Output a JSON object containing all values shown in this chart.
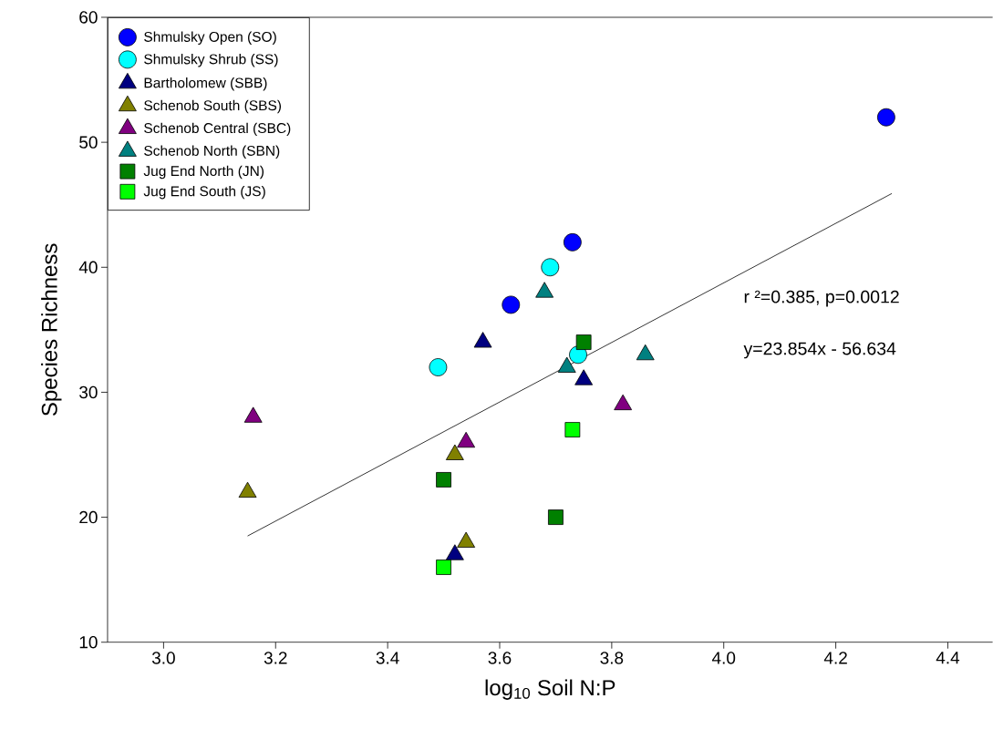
{
  "chart_data": {
    "type": "scatter",
    "xlabel": "log$_{10}$ Soil N:P",
    "ylabel": "Species Richness",
    "xlim": [
      2.9,
      4.48
    ],
    "xticks": [
      {
        "value": 3.0,
        "label": "3.0"
      },
      {
        "value": 3.2,
        "label": "3.2"
      },
      {
        "value": 3.4,
        "label": "3.4"
      },
      {
        "value": 3.6,
        "label": "3.6"
      },
      {
        "value": 3.8,
        "label": "3.8"
      },
      {
        "value": 4.0,
        "label": "4.0"
      },
      {
        "value": 4.2,
        "label": "4.2"
      },
      {
        "value": 4.4,
        "label": "4.4"
      }
    ],
    "ylim": [
      10,
      60
    ],
    "yticks": [
      10,
      20,
      30,
      40,
      50,
      60
    ],
    "legend": "top left",
    "grid": false,
    "annotations": [
      "r ²=0.385, p=0.0012",
      "y=23.854x - 56.634"
    ],
    "series": [
      {
        "name": "Shmulsky Open (SO)",
        "color": "#0000ff",
        "marker": "circle",
        "x": [
          3.62,
          3.73,
          4.29
        ],
        "values": [
          37,
          42,
          52
        ]
      },
      {
        "name": "Shmulsky Shrub (SS)",
        "color": "#00ffff",
        "marker": "circle",
        "x": [
          3.49,
          3.69,
          3.74
        ],
        "values": [
          32,
          40,
          33
        ]
      },
      {
        "name": "Bartholomew (SBB)",
        "color": "#000080",
        "marker": "triangle",
        "x": [
          3.57,
          3.75,
          3.52
        ],
        "values": [
          34,
          31,
          17
        ]
      },
      {
        "name": "Schenob South (SBS)",
        "color": "#808000",
        "marker": "triangle",
        "x": [
          3.15,
          3.52,
          3.54
        ],
        "values": [
          22,
          25,
          18
        ]
      },
      {
        "name": "Schenob Central (SBC)",
        "color": "#800080",
        "marker": "triangle",
        "x": [
          3.16,
          3.54,
          3.82
        ],
        "values": [
          28,
          26,
          29
        ]
      },
      {
        "name": "Schenob North (SBN)",
        "color": "#008080",
        "marker": "triangle",
        "x": [
          3.68,
          3.72,
          3.86
        ],
        "values": [
          38,
          32,
          33
        ]
      },
      {
        "name": "Jug End North (JN)",
        "color": "#008000",
        "marker": "square",
        "x": [
          3.5,
          3.7,
          3.75
        ],
        "values": [
          23,
          20,
          34
        ]
      },
      {
        "name": "Jug End South (JS)",
        "color": "#00ff00",
        "marker": "square",
        "x": [
          3.73,
          3.5
        ],
        "values": [
          27,
          16
        ]
      },
      {
        "type": "line",
        "color": "#000000",
        "marker": "none",
        "x": [
          3.15,
          4.3
        ],
        "values": [
          18.5,
          45.9
        ]
      }
    ]
  }
}
